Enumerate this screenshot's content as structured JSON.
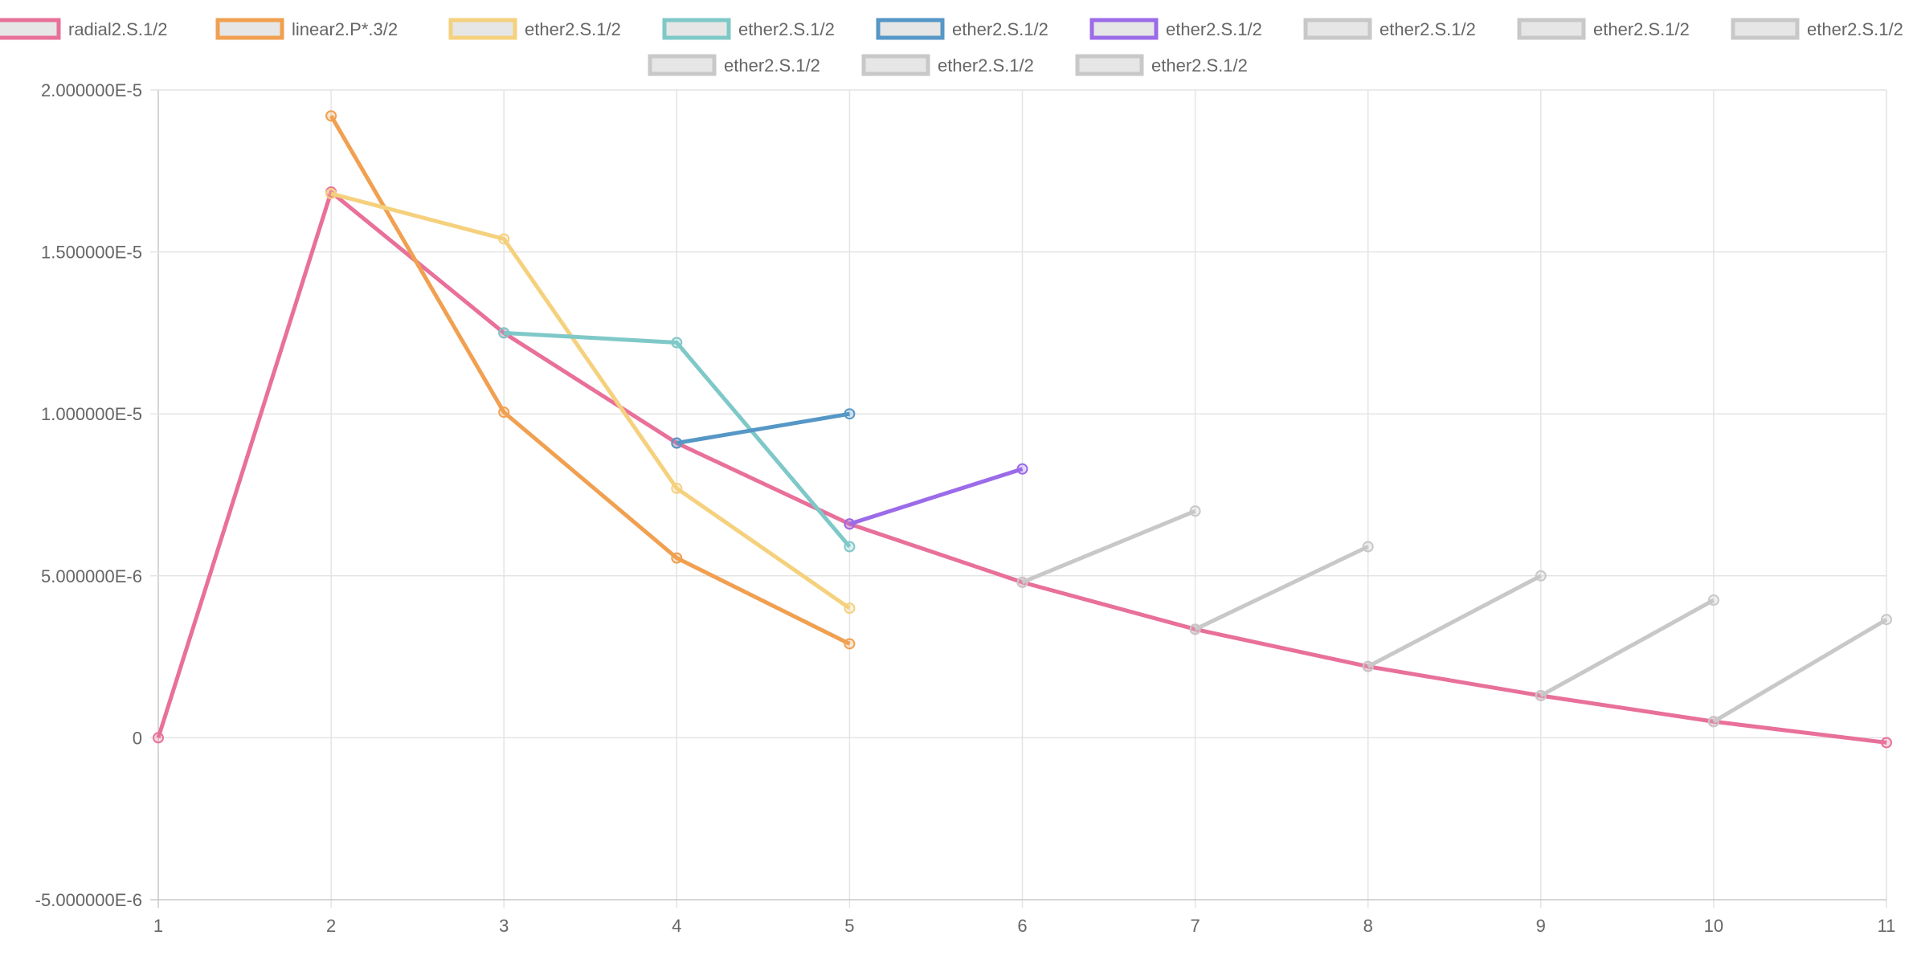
{
  "chart_data": {
    "type": "line",
    "x": [
      1,
      2,
      3,
      4,
      5,
      6,
      7,
      8,
      9,
      10,
      11
    ],
    "ylim": [
      -5e-06,
      2e-05
    ],
    "y_ticks": [
      "2.000000E-5",
      "1.500000E-5",
      "1.000000E-5",
      "5.000000E-6",
      "0",
      "-5.000000E-6"
    ],
    "y_tick_values": [
      2e-05,
      1.5e-05,
      1e-05,
      5e-06,
      0,
      -5e-06
    ],
    "x_ticks": [
      "1",
      "2",
      "3",
      "4",
      "5",
      "6",
      "7",
      "8",
      "9",
      "10",
      "11"
    ],
    "grid": true,
    "legend_position": "top-center",
    "series": [
      {
        "name": "radial2.S.1/2",
        "color": "#e8709a",
        "points": [
          [
            1,
            0
          ],
          [
            2,
            1.685e-05
          ],
          [
            3,
            1.25e-05
          ],
          [
            4,
            9.1e-06
          ],
          [
            5,
            6.6e-06
          ],
          [
            6,
            4.8e-06
          ],
          [
            7,
            3.35e-06
          ],
          [
            8,
            2.2e-06
          ],
          [
            9,
            1.3e-06
          ],
          [
            10,
            5e-07
          ],
          [
            11,
            -1.5e-07
          ]
        ]
      },
      {
        "name": "linear2.P*.3/2",
        "color": "#f0a050",
        "points": [
          [
            2,
            1.92e-05
          ],
          [
            3,
            1.005e-05
          ],
          [
            4,
            5.55e-06
          ],
          [
            5,
            2.9e-06
          ]
        ]
      },
      {
        "name": "ether2.S.1/2",
        "color": "#f5d17e",
        "points": [
          [
            2,
            1.68e-05
          ],
          [
            3,
            1.54e-05
          ],
          [
            4,
            7.7e-06
          ],
          [
            5,
            4e-06
          ]
        ]
      },
      {
        "name": "ether2.S.1/2",
        "color": "#7fc8c8",
        "points": [
          [
            3,
            1.25e-05
          ],
          [
            4,
            1.22e-05
          ],
          [
            5,
            5.9e-06
          ]
        ]
      },
      {
        "name": "ether2.S.1/2",
        "color": "#5597c6",
        "points": [
          [
            4,
            9.1e-06
          ],
          [
            5,
            1e-05
          ]
        ]
      },
      {
        "name": "ether2.S.1/2",
        "color": "#9b6be8",
        "points": [
          [
            5,
            6.6e-06
          ],
          [
            6,
            8.3e-06
          ]
        ]
      },
      {
        "name": "ether2.S.1/2",
        "color": "#c8c8c8",
        "points": [
          [
            6,
            4.8e-06
          ],
          [
            7,
            7e-06
          ]
        ]
      },
      {
        "name": "ether2.S.1/2",
        "color": "#c8c8c8",
        "points": [
          [
            7,
            3.35e-06
          ],
          [
            8,
            5.9e-06
          ]
        ]
      },
      {
        "name": "ether2.S.1/2",
        "color": "#c8c8c8",
        "points": [
          [
            8,
            2.2e-06
          ],
          [
            9,
            5e-06
          ]
        ]
      },
      {
        "name": "ether2.S.1/2",
        "color": "#c8c8c8",
        "points": [
          [
            9,
            1.3e-06
          ],
          [
            10,
            4.25e-06
          ]
        ]
      },
      {
        "name": "ether2.S.1/2",
        "color": "#c8c8c8",
        "points": [
          [
            10,
            5e-07
          ],
          [
            11,
            3.65e-06
          ]
        ]
      },
      {
        "name": "ether2.S.1/2",
        "color": "#c8c8c8",
        "points": []
      }
    ]
  }
}
